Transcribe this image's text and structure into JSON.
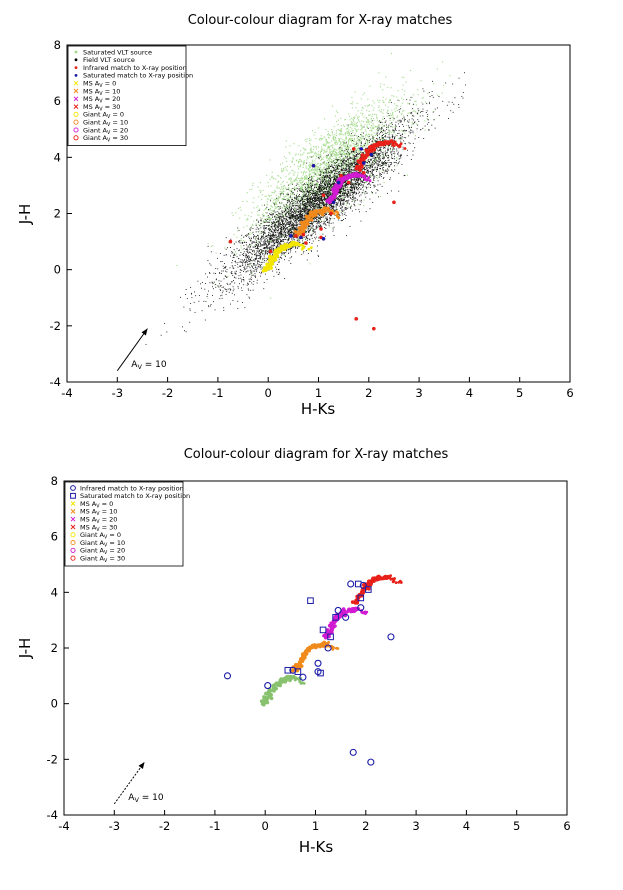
{
  "chart_data": [
    {
      "type": "scatter",
      "title": "Colour-colour diagram for X-ray matches",
      "xlabel": "H-Ks",
      "ylabel": "J-H",
      "xlim": [
        -4,
        6
      ],
      "ylim": [
        -4,
        8
      ],
      "xticks": [
        "-4",
        "-3",
        "-2",
        "-1",
        "0",
        "1",
        "2",
        "3",
        "4",
        "5",
        "6"
      ],
      "yticks": [
        "-4",
        "-2",
        "0",
        "2",
        "4",
        "6",
        "8"
      ],
      "grid": false,
      "legend_position": "top-left",
      "legend": [
        {
          "label": "Saturated VLT source",
          "color": "#9fd88a",
          "marker": "dot"
        },
        {
          "label": "Field VLT source",
          "color": "#000000",
          "marker": "dot"
        },
        {
          "label": "Infrared match to X-ray position",
          "color": "#e8201a",
          "marker": "dot"
        },
        {
          "label": "Saturated match to X-ray position",
          "color": "#1a1aa8",
          "marker": "dot"
        },
        {
          "label": "MS A",
          "sub": "V",
          "suffix": " = 0",
          "color": "#f2e600",
          "marker": "x"
        },
        {
          "label": "MS A",
          "sub": "V",
          "suffix": " = 10",
          "color": "#f08a1c",
          "marker": "x"
        },
        {
          "label": "MS A",
          "sub": "V",
          "suffix": " = 20",
          "color": "#d21ad2",
          "marker": "x"
        },
        {
          "label": "MS A",
          "sub": "V",
          "suffix": " = 30",
          "color": "#e8201a",
          "marker": "x"
        },
        {
          "label": "Giant A",
          "sub": "V",
          "suffix": " = 0",
          "color": "#f2e600",
          "marker": "o"
        },
        {
          "label": "Giant A",
          "sub": "V",
          "suffix": " = 10",
          "color": "#f08a1c",
          "marker": "o"
        },
        {
          "label": "Giant A",
          "sub": "V",
          "suffix": " = 20",
          "color": "#d21ad2",
          "marker": "o"
        },
        {
          "label": "Giant A",
          "sub": "V",
          "suffix": " = 30",
          "color": "#e8201a",
          "marker": "o"
        }
      ],
      "reddening_vector": {
        "label_main": "A",
        "label_sub": "V",
        "label_value": " = 10",
        "from": [
          -3.0,
          -3.6
        ],
        "to": [
          -2.4,
          -2.1
        ]
      },
      "infrared_matches": [
        [
          -0.75,
          1.0
        ],
        [
          0.05,
          0.65
        ],
        [
          0.55,
          1.2
        ],
        [
          0.7,
          1.25
        ],
        [
          0.75,
          0.95
        ],
        [
          1.05,
          1.45
        ],
        [
          1.1,
          2.65
        ],
        [
          1.25,
          2.0
        ],
        [
          1.45,
          3.35
        ],
        [
          1.6,
          3.1
        ],
        [
          1.9,
          3.45
        ],
        [
          1.7,
          4.3
        ],
        [
          1.95,
          4.25
        ],
        [
          2.5,
          2.4
        ],
        [
          1.75,
          -1.75
        ],
        [
          2.1,
          -2.1
        ],
        [
          1.05,
          1.15
        ],
        [
          0.9,
          3.7
        ]
      ],
      "saturated_matches": [
        [
          0.45,
          1.2
        ],
        [
          0.65,
          1.15
        ],
        [
          0.9,
          3.7
        ],
        [
          1.1,
          1.1
        ],
        [
          1.3,
          2.4
        ],
        [
          1.4,
          3.1
        ],
        [
          1.9,
          3.8
        ],
        [
          1.85,
          4.3
        ],
        [
          2.05,
          4.1
        ]
      ],
      "tracks": [
        {
          "name": "A_V = 0",
          "color": "#f2e600",
          "giant_color": "#9fd88a",
          "points": [
            [
              -0.05,
              0.0
            ],
            [
              0.05,
              0.2
            ],
            [
              0.1,
              0.45
            ],
            [
              0.2,
              0.65
            ],
            [
              0.3,
              0.8
            ],
            [
              0.45,
              0.9
            ],
            [
              0.55,
              0.95
            ]
          ]
        },
        {
          "name": "A_V = 10",
          "color": "#f08a1c",
          "points": [
            [
              0.6,
              1.2
            ],
            [
              0.7,
              1.45
            ],
            [
              0.75,
              1.7
            ],
            [
              0.85,
              1.95
            ],
            [
              0.95,
              2.05
            ],
            [
              1.1,
              2.1
            ],
            [
              1.2,
              2.15
            ]
          ]
        },
        {
          "name": "A_V = 20",
          "color": "#d21ad2",
          "points": [
            [
              1.2,
              2.4
            ],
            [
              1.3,
              2.65
            ],
            [
              1.35,
              2.9
            ],
            [
              1.45,
              3.15
            ],
            [
              1.55,
              3.3
            ],
            [
              1.7,
              3.35
            ],
            [
              1.8,
              3.4
            ]
          ]
        },
        {
          "name": "A_V = 30",
          "color": "#e8201a",
          "points": [
            [
              1.8,
              3.6
            ],
            [
              1.85,
              3.85
            ],
            [
              1.95,
              4.1
            ],
            [
              2.05,
              4.3
            ],
            [
              2.15,
              4.45
            ],
            [
              2.3,
              4.5
            ],
            [
              2.45,
              4.55
            ]
          ]
        }
      ]
    },
    {
      "type": "scatter",
      "title": "Colour-colour diagram for X-ray matches",
      "xlabel": "H-Ks",
      "ylabel": "J-H",
      "xlim": [
        -4,
        6
      ],
      "ylim": [
        -4,
        8
      ],
      "xticks": [
        "-4",
        "-3",
        "-2",
        "-1",
        "0",
        "1",
        "2",
        "3",
        "4",
        "5",
        "6"
      ],
      "yticks": [
        "-4",
        "-2",
        "0",
        "2",
        "4",
        "6",
        "8"
      ],
      "grid": false,
      "legend_position": "top-left",
      "legend": [
        {
          "label": "Infrared match to X-ray position",
          "color": "#1a1aa8",
          "marker": "circle-open"
        },
        {
          "label": "Saturated match to X-ray position",
          "color": "#1a1aa8",
          "marker": "square-open"
        },
        {
          "label": "MS A",
          "sub": "V",
          "suffix": " = 0",
          "color": "#f2e600",
          "marker": "x"
        },
        {
          "label": "MS A",
          "sub": "V",
          "suffix": " = 10",
          "color": "#f08a1c",
          "marker": "x"
        },
        {
          "label": "MS A",
          "sub": "V",
          "suffix": " = 20",
          "color": "#d21ad2",
          "marker": "x"
        },
        {
          "label": "MS A",
          "sub": "V",
          "suffix": " = 30",
          "color": "#e8201a",
          "marker": "x"
        },
        {
          "label": "Giant A",
          "sub": "V",
          "suffix": " = 0",
          "color": "#f2e600",
          "marker": "o"
        },
        {
          "label": "Giant A",
          "sub": "V",
          "suffix": " = 10",
          "color": "#f08a1c",
          "marker": "o"
        },
        {
          "label": "Giant A",
          "sub": "V",
          "suffix": " = 20",
          "color": "#d21ad2",
          "marker": "o"
        },
        {
          "label": "Giant A",
          "sub": "V",
          "suffix": " = 30",
          "color": "#e8201a",
          "marker": "o"
        }
      ],
      "reddening_vector": {
        "label_main": "A",
        "label_sub": "V",
        "label_value": " = 10",
        "from": [
          -3.0,
          -3.6
        ],
        "to": [
          -2.4,
          -2.1
        ]
      },
      "infrared_matches": [
        [
          -0.75,
          1.0
        ],
        [
          0.05,
          0.65
        ],
        [
          0.55,
          1.2
        ],
        [
          0.75,
          0.95
        ],
        [
          1.05,
          1.45
        ],
        [
          1.25,
          2.0
        ],
        [
          1.45,
          3.35
        ],
        [
          1.6,
          3.1
        ],
        [
          1.9,
          3.45
        ],
        [
          1.7,
          4.3
        ],
        [
          1.95,
          4.25
        ],
        [
          2.5,
          2.4
        ],
        [
          1.75,
          -1.75
        ],
        [
          2.1,
          -2.1
        ],
        [
          1.05,
          1.15
        ]
      ],
      "saturated_matches": [
        [
          0.45,
          1.2
        ],
        [
          0.65,
          1.15
        ],
        [
          0.9,
          3.7
        ],
        [
          1.1,
          1.1
        ],
        [
          1.3,
          2.4
        ],
        [
          1.15,
          2.65
        ],
        [
          1.4,
          3.1
        ],
        [
          1.9,
          3.8
        ],
        [
          1.85,
          4.3
        ],
        [
          2.05,
          4.1
        ]
      ],
      "tracks": [
        {
          "name": "A_V = 0",
          "color": "#88c26e",
          "points": [
            [
              -0.05,
              0.0
            ],
            [
              0.05,
              0.2
            ],
            [
              0.1,
              0.45
            ],
            [
              0.2,
              0.65
            ],
            [
              0.3,
              0.8
            ],
            [
              0.45,
              0.9
            ],
            [
              0.55,
              0.95
            ]
          ]
        },
        {
          "name": "A_V = 10",
          "color": "#f08a1c",
          "points": [
            [
              0.6,
              1.2
            ],
            [
              0.7,
              1.45
            ],
            [
              0.75,
              1.7
            ],
            [
              0.85,
              1.95
            ],
            [
              0.95,
              2.05
            ],
            [
              1.1,
              2.1
            ],
            [
              1.2,
              2.15
            ]
          ]
        },
        {
          "name": "A_V = 20",
          "color": "#d21ad2",
          "points": [
            [
              1.2,
              2.4
            ],
            [
              1.3,
              2.65
            ],
            [
              1.35,
              2.9
            ],
            [
              1.45,
              3.15
            ],
            [
              1.55,
              3.3
            ],
            [
              1.7,
              3.35
            ],
            [
              1.8,
              3.4
            ]
          ]
        },
        {
          "name": "A_V = 30",
          "color": "#e8201a",
          "points": [
            [
              1.8,
              3.6
            ],
            [
              1.85,
              3.85
            ],
            [
              1.95,
              4.1
            ],
            [
              2.05,
              4.3
            ],
            [
              2.15,
              4.45
            ],
            [
              2.3,
              4.5
            ],
            [
              2.45,
              4.55
            ]
          ]
        }
      ]
    }
  ]
}
